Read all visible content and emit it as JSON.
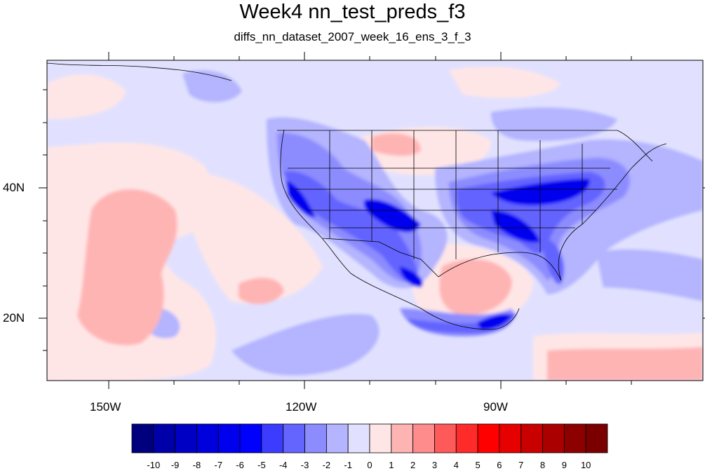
{
  "title": "Week4 nn_test_preds_f3",
  "subtitle": "diffs_nn_dataset_2007_week_16_ens_3_f_3",
  "map": {
    "lat_labels": [
      "40N",
      "20N"
    ],
    "lon_labels": [
      "150W",
      "120W",
      "90W"
    ]
  },
  "colorbar": {
    "colors": [
      "#00007f",
      "#0000a8",
      "#0000c5",
      "#0000dc",
      "#0000ef",
      "#0000ff",
      "#3c3cff",
      "#6464ff",
      "#8c8cff",
      "#b4b4ff",
      "#e1e1ff",
      "#ffe6e6",
      "#ffb4b4",
      "#ff8c8c",
      "#ff5a5a",
      "#ff2a2a",
      "#ff0000",
      "#e60000",
      "#c80000",
      "#aa0000",
      "#8c0000",
      "#7a0000"
    ],
    "labels": [
      "-10",
      "-9",
      "-8",
      "-7",
      "-6",
      "-5",
      "-4",
      "-3",
      "-2",
      "-1",
      "0",
      "1",
      "2",
      "3",
      "4",
      "5",
      "6",
      "7",
      "8",
      "9",
      "10"
    ]
  }
}
